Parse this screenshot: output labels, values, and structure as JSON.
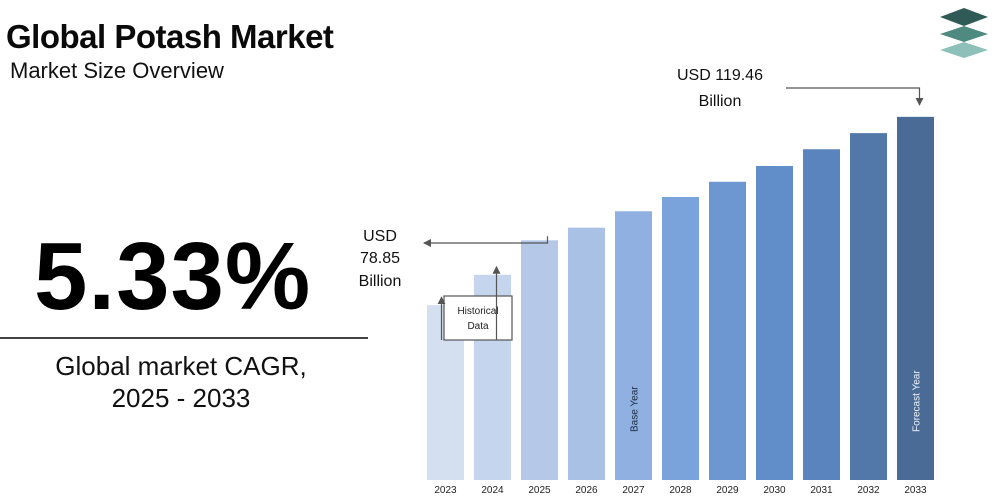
{
  "header": {
    "title": "Global Potash Market",
    "subtitle": "Market Size Overview"
  },
  "cagr": {
    "value": "5.33%",
    "label_line1": "Global market CAGR,",
    "label_line2": "2025 - 2033"
  },
  "logo": {
    "icon": "stacked-layers-icon",
    "colors": [
      "#2f5a55",
      "#4f8a80",
      "#8cc0b8"
    ]
  },
  "chart_data": {
    "type": "bar",
    "categories": [
      "2023",
      "2024",
      "2025",
      "2026",
      "2027",
      "2028",
      "2029",
      "2030",
      "2031",
      "2032",
      "2033"
    ],
    "values": [
      57.5,
      67.5,
      78.85,
      83.0,
      88.4,
      93.1,
      98.1,
      103.3,
      108.8,
      114.1,
      119.46
    ],
    "colors": [
      "#d4dff0",
      "#c5d5ee",
      "#b5c8e8",
      "#a9c1e5",
      "#8fb0e0",
      "#7aa2db",
      "#6c97d1",
      "#618dc8",
      "#5a84bd",
      "#5277a9",
      "#4a6b96"
    ],
    "ylim": [
      0,
      125
    ],
    "bar_labels": {
      "2027": "Base Year",
      "2033": "Forecast Year"
    },
    "annotations": {
      "historical": {
        "line1": "Historical",
        "line2": "Data",
        "targets": [
          "2023",
          "2024"
        ]
      },
      "value_2025": {
        "line1": "USD",
        "line2": "78.85",
        "line3": "Billion"
      },
      "value_2033": {
        "line1": "USD 119.46",
        "line2": "Billion"
      }
    }
  }
}
